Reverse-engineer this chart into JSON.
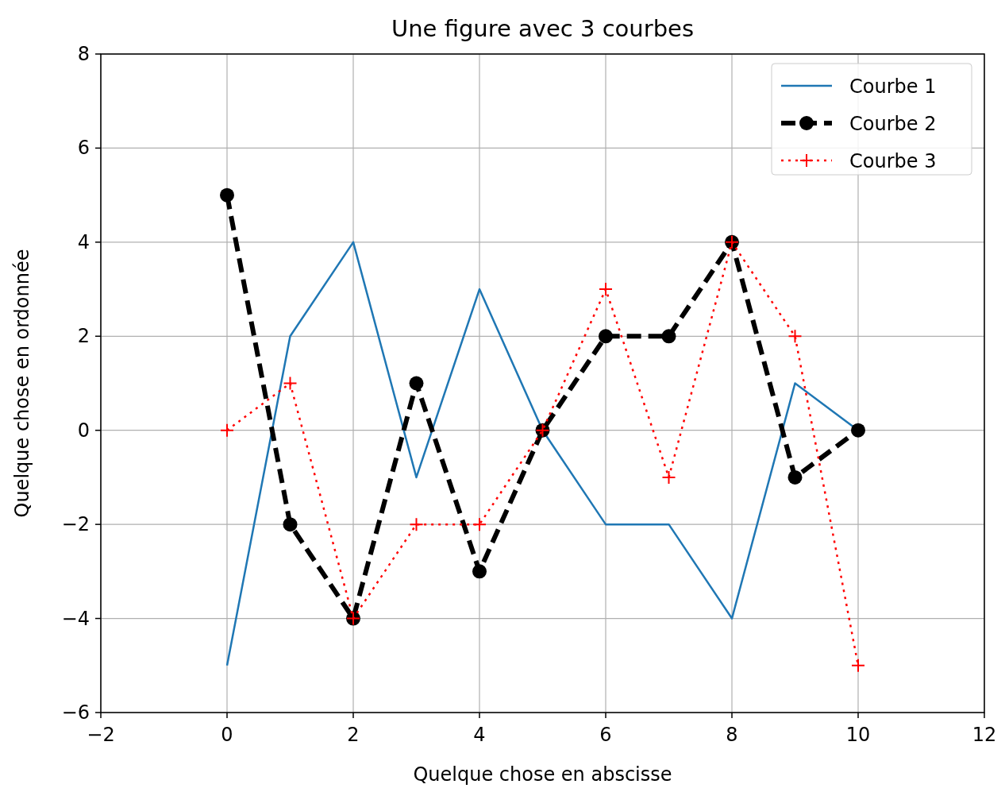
{
  "chart_data": {
    "type": "line",
    "title": "Une figure avec 3 courbes",
    "xlabel": "Quelque chose en abscisse",
    "ylabel": "Quelque chose en ordonnée",
    "x": [
      0,
      1,
      2,
      3,
      4,
      5,
      6,
      7,
      8,
      9,
      10
    ],
    "series": [
      {
        "name": "Courbe 1",
        "color": "#1f77b4",
        "values": [
          -5,
          2,
          4,
          -1,
          3,
          0,
          -2,
          -2,
          -4,
          1,
          0
        ],
        "marker": "none",
        "line_style": "solid"
      },
      {
        "name": "Courbe 2",
        "color": "#000000",
        "values": [
          5,
          -2,
          -4,
          1,
          -3,
          0,
          2,
          2,
          4,
          -1,
          0
        ],
        "marker": "circle",
        "line_style": "dashed"
      },
      {
        "name": "Courbe 3",
        "color": "#ff0000",
        "values": [
          0,
          1,
          -4,
          -2,
          -2,
          0,
          3,
          -1,
          4,
          2,
          -5
        ],
        "marker": "cross",
        "line_style": "dotted"
      }
    ],
    "xlim": [
      -2,
      12
    ],
    "xticks": [
      -2,
      0,
      2,
      4,
      6,
      8,
      10,
      12
    ],
    "ylim": [
      -6,
      8
    ],
    "yticks": [
      -6,
      -4,
      -2,
      0,
      2,
      4,
      6,
      8
    ],
    "grid": true,
    "legend": "top right"
  }
}
